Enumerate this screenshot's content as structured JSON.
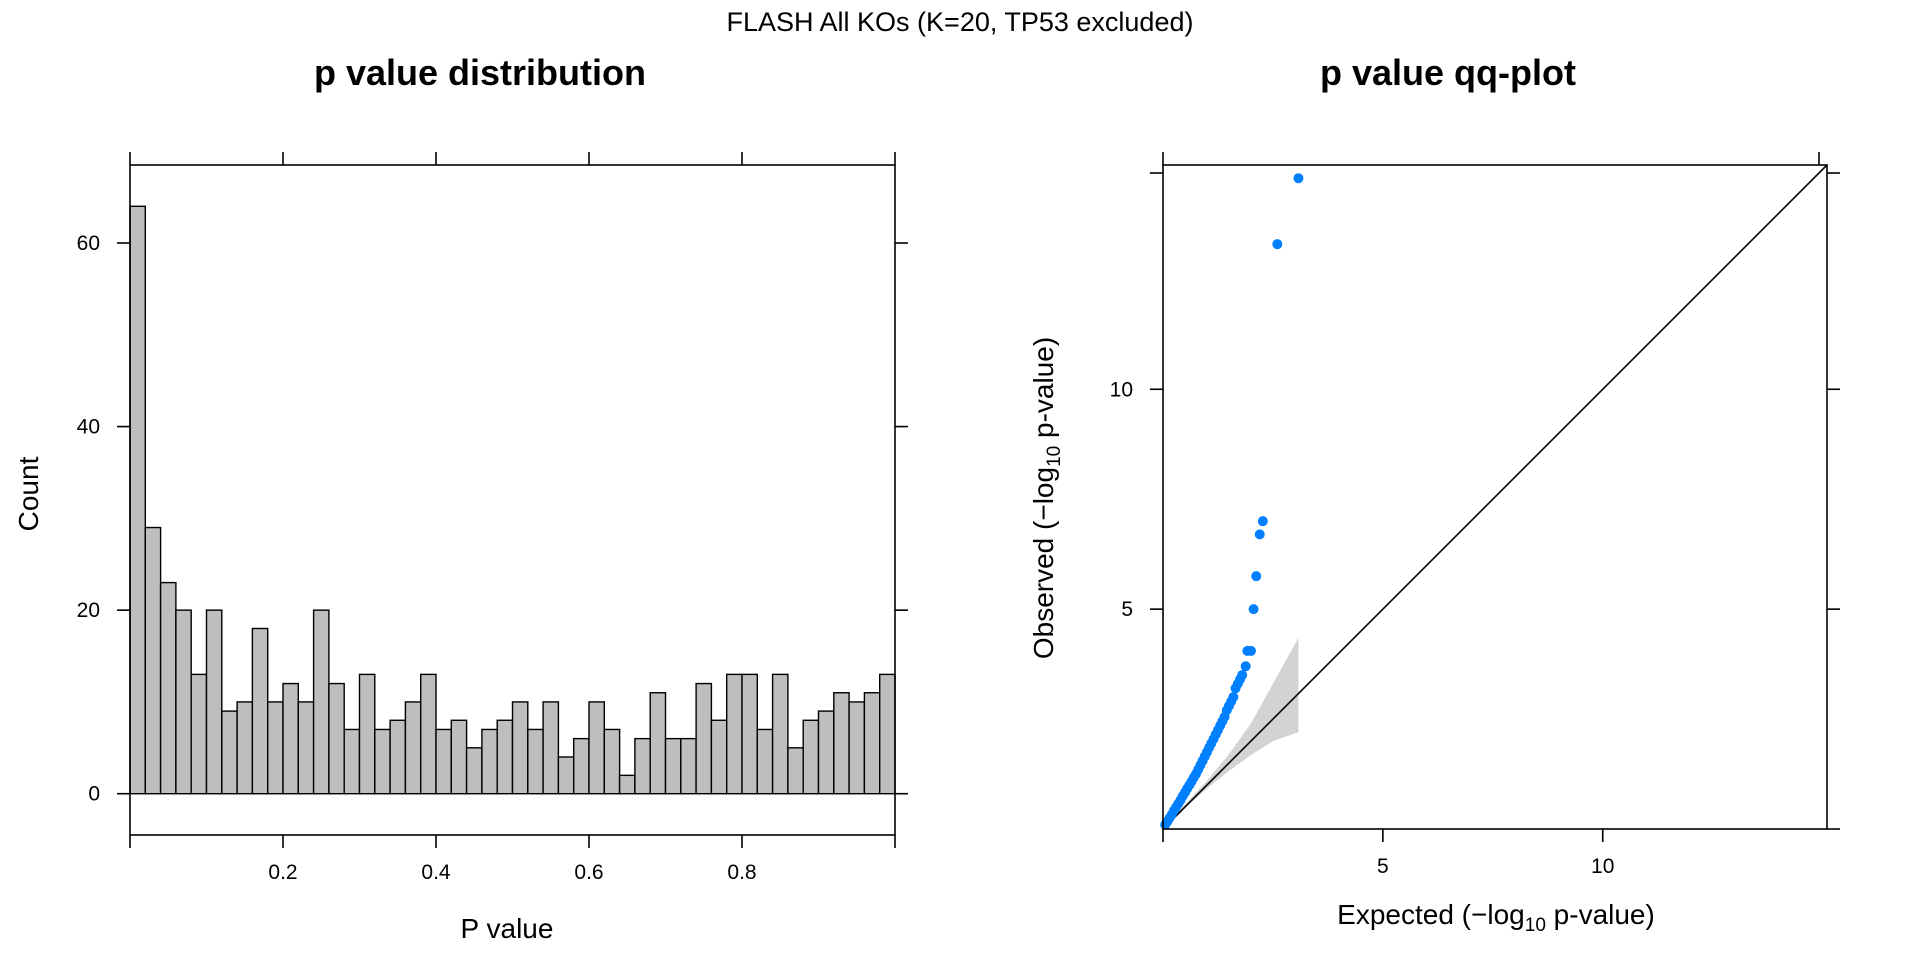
{
  "figure": {
    "title": "FLASH All KOs (K=20, TP53 excluded)"
  },
  "colors": {
    "bar_fill": "#bebebe",
    "point": "#0080ff",
    "band": "#d3d3d3",
    "line": "#000000"
  },
  "chart_data": [
    {
      "type": "bar",
      "title": "p value distribution",
      "xlabel": "P value",
      "ylabel": "Count",
      "bin_width": 0.02,
      "bin_start": 0,
      "values": [
        64,
        29,
        23,
        20,
        13,
        20,
        9,
        10,
        18,
        10,
        12,
        10,
        20,
        12,
        7,
        13,
        7,
        8,
        10,
        13,
        7,
        8,
        5,
        7,
        8,
        10,
        7,
        10,
        4,
        6,
        10,
        7,
        2,
        6,
        11,
        6,
        6,
        12,
        8,
        13,
        13,
        7,
        13,
        5,
        8,
        9,
        11,
        10,
        11,
        13
      ],
      "xlim": [
        0,
        1
      ],
      "ylim": [
        -4.5,
        68.5
      ],
      "xticks": [
        0.2,
        0.4,
        0.6,
        0.8
      ],
      "xtick_labels": [
        "0.2",
        "0.4",
        "0.6",
        "0.8"
      ],
      "yticks": [
        0,
        20,
        40,
        60
      ],
      "ytick_labels": [
        "0",
        "20",
        "40",
        "60"
      ],
      "grid": false,
      "legend": "none"
    },
    {
      "type": "scatter",
      "title": "p value qq-plot",
      "xlabel_prefix": "Expected (",
      "ylabel_prefix": "Observed (",
      "label_minus": "−",
      "label_log": "log",
      "label_base": "10",
      "label_suffix": " p-value)",
      "xlim": [
        0,
        15.1
      ],
      "ylim": [
        0,
        15.1
      ],
      "xticks": [
        5,
        10
      ],
      "xtick_labels": [
        "5",
        "10"
      ],
      "yticks": [
        5,
        10
      ],
      "ytick_labels": [
        "5",
        "10"
      ],
      "reference_line": "y = x",
      "confidence_band": {
        "x": [
          0,
          0.5,
          1.0,
          1.5,
          2.0,
          2.5,
          3.08
        ],
        "lower": [
          0,
          0.48,
          0.92,
          1.32,
          1.68,
          2.0,
          2.2
        ],
        "upper": [
          0,
          0.56,
          1.1,
          1.7,
          2.4,
          3.3,
          4.35
        ]
      },
      "points": {
        "x": [
          0.05,
          0.1,
          0.15,
          0.2,
          0.25,
          0.3,
          0.35,
          0.4,
          0.45,
          0.5,
          0.55,
          0.6,
          0.65,
          0.7,
          0.75,
          0.8,
          0.85,
          0.9,
          0.95,
          1.0,
          1.05,
          1.1,
          1.15,
          1.2,
          1.25,
          1.3,
          1.35,
          1.4,
          1.45,
          1.5,
          1.55,
          1.6,
          1.65,
          1.7,
          1.75,
          1.8,
          1.88,
          1.92,
          2.0,
          2.06,
          2.12,
          2.2,
          2.27,
          2.6,
          3.08
        ],
        "y": [
          0.1,
          0.17,
          0.25,
          0.33,
          0.42,
          0.5,
          0.58,
          0.66,
          0.75,
          0.83,
          0.92,
          1.0,
          1.08,
          1.17,
          1.25,
          1.35,
          1.45,
          1.55,
          1.65,
          1.75,
          1.85,
          1.95,
          2.05,
          2.15,
          2.25,
          2.35,
          2.45,
          2.55,
          2.7,
          2.8,
          2.9,
          3.0,
          3.2,
          3.3,
          3.4,
          3.5,
          3.7,
          4.05,
          4.05,
          5.0,
          5.75,
          6.7,
          7.0,
          13.3,
          14.8
        ]
      },
      "grid": false,
      "legend": "none"
    }
  ]
}
